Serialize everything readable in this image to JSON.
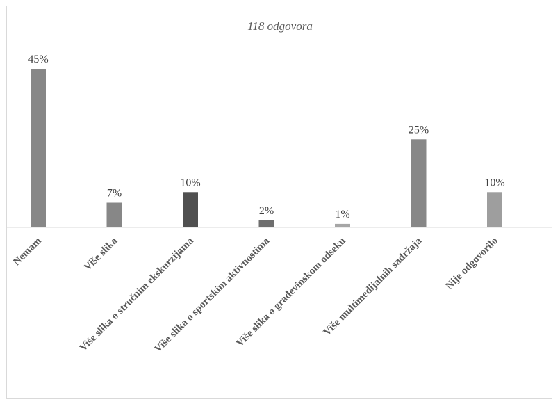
{
  "chart_data": {
    "type": "bar",
    "title": "118 odgovora",
    "categories": [
      "Nemam",
      "Više slika",
      "Više slika o stručnim ekskurzijama",
      "Više slika o sportskim aktivnostima",
      "Više slika o građevinskom odseku",
      "Više multimedijalnih sadržaja",
      "Nije odgovorilo"
    ],
    "values": [
      45,
      7,
      10,
      2,
      1,
      25,
      10
    ],
    "value_labels": [
      "45%",
      "7%",
      "10%",
      "2%",
      "1%",
      "25%",
      "10%"
    ],
    "colors": [
      "#878787",
      "#878787",
      "#505050",
      "#6e6e6e",
      "#a6a6a6",
      "#878787",
      "#9e9e9e"
    ],
    "unit": "%",
    "ylim": [
      0,
      45
    ],
    "grid": false,
    "legend": "none"
  }
}
